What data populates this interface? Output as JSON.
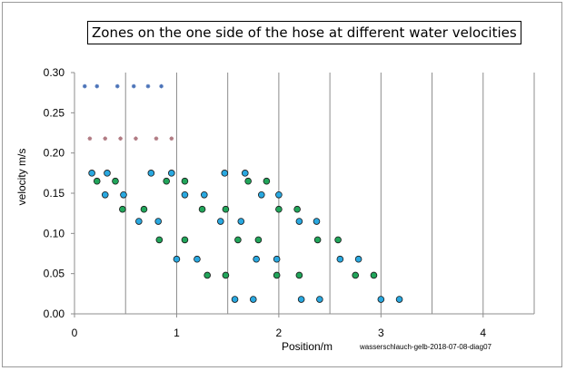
{
  "chart_data": {
    "type": "scatter",
    "title": "Zones on the one side of the hose at different water velocities",
    "xlabel": "Position/m",
    "ylabel": "velocity m/s",
    "xlim": [
      0,
      4.5
    ],
    "ylim": [
      0,
      0.3
    ],
    "x_ticks": [
      "0",
      "1",
      "2",
      "3",
      "4"
    ],
    "y_ticks": [
      "0.00",
      "0.05",
      "0.10",
      "0.15",
      "0.20",
      "0.25",
      "0.30"
    ],
    "grid": "vertical",
    "legend": "none",
    "footnote": "wasserschlauch-gelb-2018-07-08-diag07",
    "colors": {
      "blue": "#29a8e0",
      "green": "#21a55a",
      "top_row": "#4a72b8",
      "second_row": "#b07a82"
    },
    "series": [
      {
        "color": "blue",
        "marker": "circle",
        "points": [
          [
            0.17,
            0.175
          ],
          [
            0.32,
            0.175
          ],
          [
            0.75,
            0.175
          ],
          [
            0.95,
            0.175
          ],
          [
            1.47,
            0.175
          ],
          [
            1.67,
            0.175
          ],
          [
            0.3,
            0.148
          ],
          [
            0.48,
            0.148
          ],
          [
            1.08,
            0.148
          ],
          [
            1.27,
            0.148
          ],
          [
            1.83,
            0.148
          ],
          [
            2.0,
            0.148
          ],
          [
            0.63,
            0.115
          ],
          [
            0.82,
            0.115
          ],
          [
            1.43,
            0.115
          ],
          [
            1.63,
            0.115
          ],
          [
            2.2,
            0.115
          ],
          [
            2.37,
            0.115
          ],
          [
            1.0,
            0.068
          ],
          [
            1.2,
            0.068
          ],
          [
            1.78,
            0.068
          ],
          [
            1.98,
            0.068
          ],
          [
            2.6,
            0.068
          ],
          [
            2.78,
            0.068
          ],
          [
            1.57,
            0.018
          ],
          [
            1.75,
            0.018
          ],
          [
            2.22,
            0.018
          ],
          [
            2.4,
            0.018
          ],
          [
            3.0,
            0.018
          ],
          [
            3.18,
            0.018
          ]
        ]
      },
      {
        "color": "green",
        "marker": "circle",
        "points": [
          [
            0.22,
            0.165
          ],
          [
            0.4,
            0.165
          ],
          [
            0.9,
            0.165
          ],
          [
            1.08,
            0.165
          ],
          [
            1.7,
            0.165
          ],
          [
            1.88,
            0.165
          ],
          [
            0.47,
            0.13
          ],
          [
            0.68,
            0.13
          ],
          [
            1.25,
            0.13
          ],
          [
            1.48,
            0.13
          ],
          [
            2.0,
            0.13
          ],
          [
            2.18,
            0.13
          ],
          [
            0.83,
            0.092
          ],
          [
            1.08,
            0.092
          ],
          [
            1.6,
            0.092
          ],
          [
            1.8,
            0.092
          ],
          [
            2.38,
            0.092
          ],
          [
            2.58,
            0.092
          ],
          [
            1.3,
            0.048
          ],
          [
            1.48,
            0.048
          ],
          [
            1.98,
            0.048
          ],
          [
            2.2,
            0.048
          ],
          [
            2.75,
            0.048
          ],
          [
            2.93,
            0.048
          ]
        ]
      },
      {
        "color": "top_row",
        "marker": "star",
        "points": [
          [
            0.1,
            0.283
          ],
          [
            0.22,
            0.283
          ],
          [
            0.42,
            0.283
          ],
          [
            0.58,
            0.283
          ],
          [
            0.72,
            0.283
          ],
          [
            0.85,
            0.283
          ]
        ]
      },
      {
        "color": "second_row",
        "marker": "star",
        "points": [
          [
            0.15,
            0.218
          ],
          [
            0.3,
            0.218
          ],
          [
            0.45,
            0.218
          ],
          [
            0.6,
            0.218
          ],
          [
            0.8,
            0.218
          ],
          [
            0.95,
            0.218
          ]
        ]
      }
    ]
  }
}
